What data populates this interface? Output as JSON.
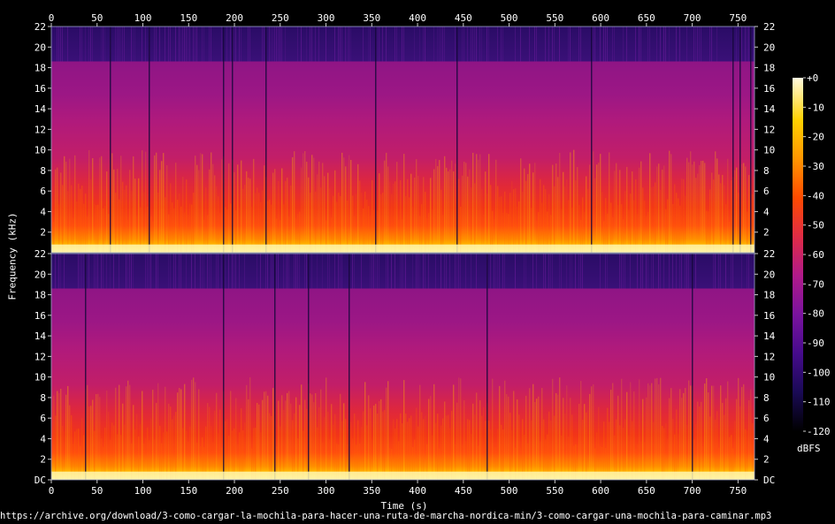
{
  "chart_data": {
    "type": "heatmap",
    "title": "",
    "xlabel": "Time (s)",
    "ylabel": "Frequency (kHz)",
    "xlim": [
      0,
      768
    ],
    "ylim": [
      0,
      22
    ],
    "x_ticks": [
      0,
      50,
      100,
      150,
      200,
      250,
      300,
      350,
      400,
      450,
      500,
      550,
      600,
      650,
      700,
      750
    ],
    "y_ticks": [
      2,
      4,
      6,
      8,
      10,
      12,
      14,
      16,
      18,
      20,
      22
    ],
    "y_tick_labels_bottom_panel": [
      "DC",
      "2",
      "4",
      "6",
      "8",
      "10",
      "12",
      "14",
      "16",
      "18",
      "20",
      "22"
    ],
    "channels": 2,
    "cutoff_khz": 18.6,
    "colorbar": {
      "unit": "dBFS",
      "range": [
        -120,
        0
      ],
      "ticks": [
        "+0",
        "-10",
        "-20",
        "-30",
        "-40",
        "-50",
        "-60",
        "-70",
        "-80",
        "-90",
        "-100",
        "-110",
        "-120"
      ],
      "colors": [
        "#000000",
        "#1a0a55",
        "#460b8c",
        "#7a139e",
        "#b01a8a",
        "#e02c46",
        "#ff4a00",
        "#ff9500",
        "#ffd100",
        "#fffbe0"
      ]
    }
  },
  "footer": {
    "url": "https://archive.org/download/3-como-cargar-la-mochila-para-hacer-una-ruta-de-marcha-nordica-min/3-como-cargar-una-mochila-para-caminar.mp3"
  }
}
